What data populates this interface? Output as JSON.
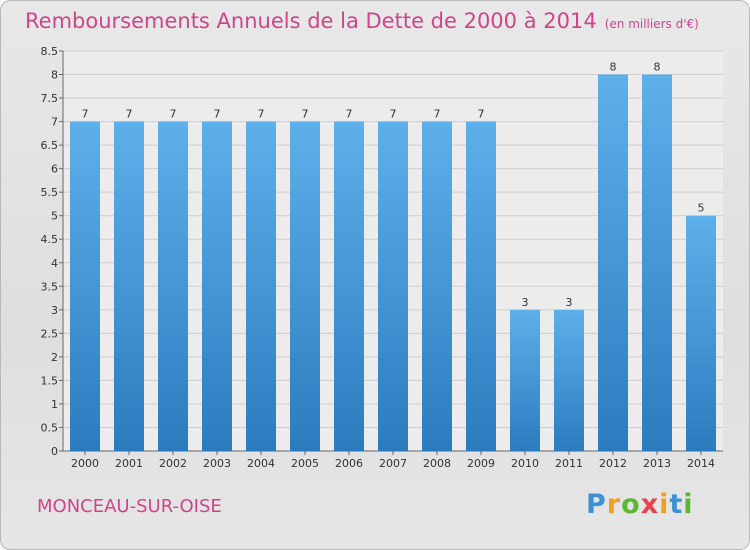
{
  "chart_data": {
    "type": "bar",
    "title": "Remboursements Annuels de la Dette de 2000 à 2014",
    "unit": "(en milliers d'€)",
    "categories": [
      "2000",
      "2001",
      "2002",
      "2003",
      "2004",
      "2005",
      "2006",
      "2007",
      "2008",
      "2009",
      "2010",
      "2011",
      "2012",
      "2013",
      "2014"
    ],
    "values": [
      7,
      7,
      7,
      7,
      7,
      7,
      7,
      7,
      7,
      7,
      3,
      3,
      8,
      8,
      5
    ],
    "ylim": [
      0,
      8.5
    ],
    "yticks": [
      "0",
      "0.5",
      "1",
      "1.5",
      "2",
      "2.5",
      "3",
      "3.5",
      "4",
      "4.5",
      "5",
      "5.5",
      "6",
      "6.5",
      "7",
      "7.5",
      "8",
      "8.5"
    ],
    "grid": true,
    "bar_color": "#4da3df",
    "bar_color_light": "#5eb0ea",
    "bar_color_dark": "#2a7cbf"
  },
  "commune": "MONCEAU-SUR-OISE",
  "logo": {
    "letters": [
      "P",
      "r",
      "o",
      "x",
      "i",
      "t",
      "i"
    ],
    "colors": [
      "#3f8fd6",
      "#f0a020",
      "#5cb832",
      "#e8424a",
      "#f0a020",
      "#3f8fd6",
      "#5cb832"
    ]
  },
  "colors": {
    "title": "#d0448a",
    "axis_text": "#333333",
    "grid": "#cfcfcf"
  }
}
